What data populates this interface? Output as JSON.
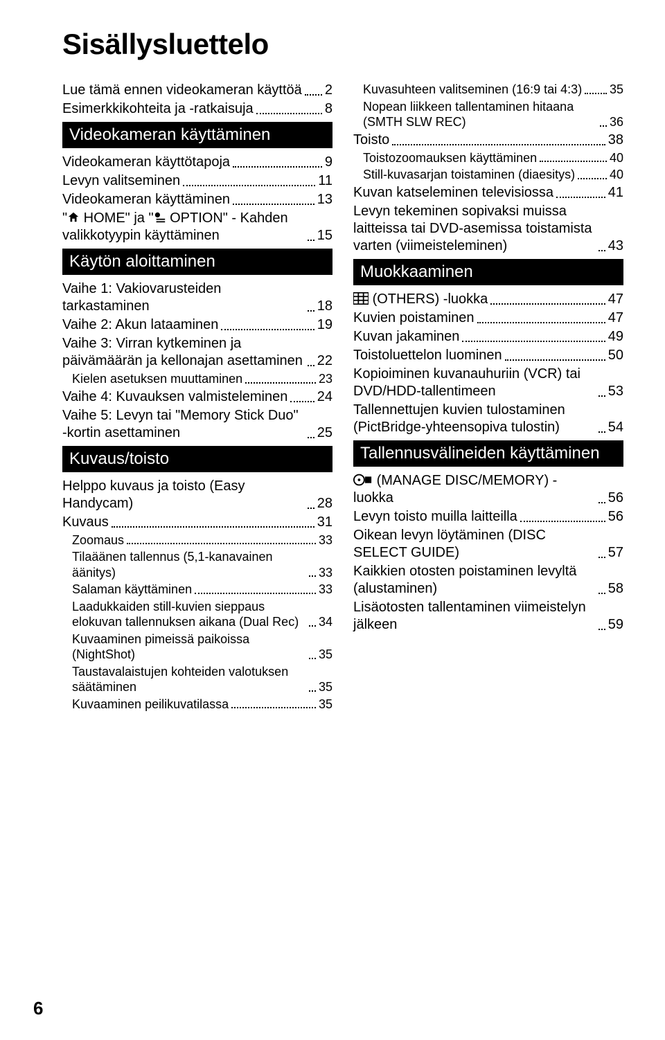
{
  "page": {
    "title": "Sisällysluettelo",
    "number": "6",
    "bg_color": "#ffffff",
    "text_color": "#000000",
    "header_bg": "#000000",
    "header_fg": "#ffffff",
    "title_fontsize": 42,
    "body_fontsize": 20,
    "sub_fontsize": 18,
    "header_fontsize": 24
  },
  "left": {
    "intro": [
      {
        "label": "Lue tämä ennen videokameran käyttöä",
        "page": "2"
      },
      {
        "label": "Esimerkkikohteita ja -ratkaisuja",
        "page": "8"
      }
    ],
    "h1": "Videokameran käyttäminen",
    "s1": [
      {
        "label": "Videokameran käyttötapoja",
        "page": "9"
      },
      {
        "label": "Levyn valitseminen",
        "page": "11"
      },
      {
        "label": "Videokameran käyttäminen",
        "page": "13"
      },
      {
        "label": "\" HOME\" ja \" OPTION\" - Kahden valikkotyypin käyttäminen",
        "page": "15",
        "icons": true
      }
    ],
    "h2": "Käytön aloittaminen",
    "s2": [
      {
        "label": "Vaihe 1: Vakiovarusteiden tarkastaminen",
        "page": "18"
      },
      {
        "label": "Vaihe 2: Akun lataaminen",
        "page": "19"
      },
      {
        "label": "Vaihe 3: Virran kytkeminen ja päivämäärän ja kellonajan asettaminen",
        "page": "22"
      },
      {
        "label": "Kielen asetuksen muuttaminen",
        "page": "23",
        "sub": true
      },
      {
        "label": "Vaihe 4: Kuvauksen valmisteleminen",
        "page": "24"
      },
      {
        "label": "Vaihe 5: Levyn tai \"Memory Stick Duo\" -kortin asettaminen",
        "page": "25"
      }
    ],
    "h3": "Kuvaus/toisto",
    "s3": [
      {
        "label": "Helppo kuvaus ja toisto (Easy Handycam)",
        "page": "28"
      },
      {
        "label": "Kuvaus",
        "page": "31"
      },
      {
        "label": "Zoomaus",
        "page": "33",
        "sub": true
      },
      {
        "label": "Tilaäänen tallennus (5,1-kanavainen äänitys)",
        "page": "33",
        "sub": true
      },
      {
        "label": "Salaman käyttäminen",
        "page": "33",
        "sub": true
      },
      {
        "label": "Laadukkaiden still-kuvien sieppaus elokuvan tallennuksen aikana (Dual Rec)",
        "page": "34",
        "sub": true
      },
      {
        "label": "Kuvaaminen pimeissä paikoissa (NightShot)",
        "page": "35",
        "sub": true
      },
      {
        "label": "Taustavalaistujen kohteiden valotuksen säätäminen",
        "page": "35",
        "sub": true
      },
      {
        "label": "Kuvaaminen peilikuvatilassa",
        "page": "35",
        "sub": true
      }
    ]
  },
  "right": {
    "s0": [
      {
        "label": "Kuvasuhteen valitseminen (16:9 tai 4:3)",
        "page": "35",
        "sub": true
      },
      {
        "label": "Nopean liikkeen tallentaminen hitaana (SMTH SLW REC)",
        "page": "36",
        "sub": true
      },
      {
        "label": "Toisto",
        "page": "38"
      },
      {
        "label": "Toistozoomauksen käyttäminen",
        "page": "40",
        "sub": true
      },
      {
        "label": "Still-kuvasarjan toistaminen (diaesitys)",
        "page": "40",
        "sub": true
      },
      {
        "label": "Kuvan katseleminen televisiossa",
        "page": "41"
      },
      {
        "label": "Levyn tekeminen sopivaksi muissa laitteissa tai DVD-asemissa toistamista varten (viimeisteleminen)",
        "page": "43"
      }
    ],
    "h1": "Muokkaaminen",
    "s1": [
      {
        "label": "(OTHERS) -luokka",
        "page": "47",
        "icon": "grid"
      },
      {
        "label": "Kuvien poistaminen",
        "page": "47"
      },
      {
        "label": "Kuvan jakaminen",
        "page": "49"
      },
      {
        "label": "Toistoluettelon luominen",
        "page": "50"
      },
      {
        "label": "Kopioiminen kuvanauhuriin (VCR) tai DVD/HDD-tallentimeen",
        "page": "53"
      },
      {
        "label": "Tallennettujen kuvien tulostaminen (PictBridge-yhteensopiva tulostin)",
        "page": "54"
      }
    ],
    "h2": "Tallennusvälineiden käyttäminen",
    "s2": [
      {
        "label": "(MANAGE DISC/MEMORY) -luokka",
        "page": "56",
        "icon": "disc"
      },
      {
        "label": "Levyn toisto muilla laitteilla",
        "page": "56"
      },
      {
        "label": "Oikean levyn löytäminen (DISC SELECT GUIDE)",
        "page": "57"
      },
      {
        "label": "Kaikkien otosten poistaminen levyltä (alustaminen)",
        "page": "58"
      },
      {
        "label": "Lisäotosten tallentaminen viimeistelyn jälkeen",
        "page": "59"
      }
    ]
  }
}
